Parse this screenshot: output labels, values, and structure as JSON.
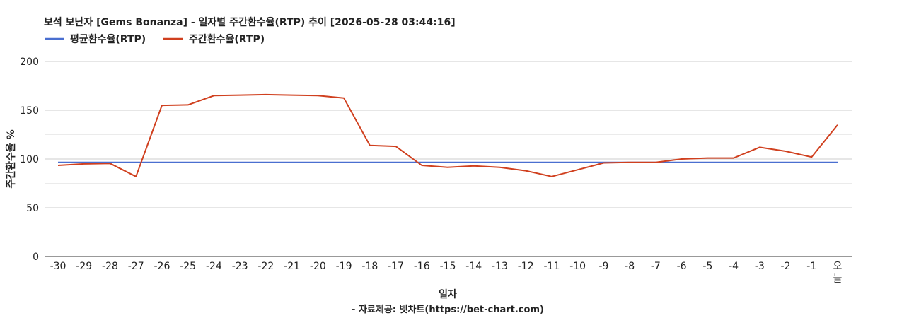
{
  "chart_data": {
    "type": "line",
    "title": "보석 보난자 [Gems Bonanza] - 일자별 주간환수율(RTP) 추이 [2026-05-28 03:44:16]",
    "xlabel": "일자",
    "ylabel": "주간환수율 %",
    "footer": "- 자료제공: 벳차트(https://bet-chart.com)",
    "categories": [
      "-30",
      "-29",
      "-28",
      "-27",
      "-26",
      "-25",
      "-24",
      "-23",
      "-22",
      "-21",
      "-20",
      "-19",
      "-18",
      "-17",
      "-16",
      "-15",
      "-14",
      "-13",
      "-12",
      "-11",
      "-10",
      "-9",
      "-8",
      "-7",
      "-6",
      "-5",
      "-4",
      "-3",
      "-2",
      "-1",
      "오늘"
    ],
    "ylim": [
      0,
      200
    ],
    "yticks": [
      0,
      50,
      100,
      150,
      200
    ],
    "grid": true,
    "legend_position": "top-left",
    "series": [
      {
        "name": "평균환수율(RTP)",
        "color": "#4a6fd0",
        "values": [
          96.5,
          96.5,
          96.5,
          96.5,
          96.5,
          96.5,
          96.5,
          96.5,
          96.5,
          96.5,
          96.5,
          96.5,
          96.5,
          96.5,
          96.5,
          96.5,
          96.5,
          96.5,
          96.5,
          96.5,
          96.5,
          96.5,
          96.5,
          96.5,
          96.5,
          96.5,
          96.5,
          96.5,
          96.5,
          96.5,
          96.5
        ]
      },
      {
        "name": "주간환수율(RTP)",
        "color": "#d0401f",
        "values": [
          93.5,
          95,
          95.5,
          82,
          155,
          155.5,
          165,
          165.5,
          166,
          165.5,
          165,
          162.5,
          114,
          113,
          93.5,
          91.5,
          93,
          91.5,
          88,
          82,
          89,
          96,
          96.5,
          96.5,
          100,
          101,
          101,
          112,
          108,
          102,
          135
        ]
      }
    ]
  }
}
